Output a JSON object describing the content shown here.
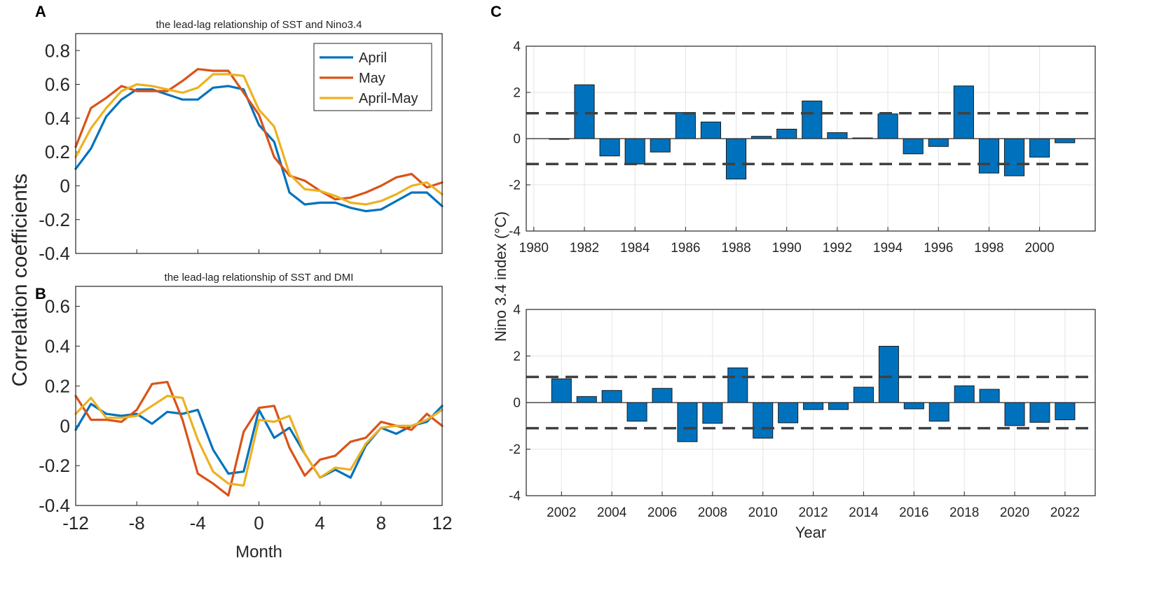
{
  "figure": {
    "panels": {
      "A": "A",
      "B": "B",
      "C": "C"
    },
    "shared_ylabel": "Correlation coefficients",
    "month_label": "Month",
    "year_label": "Year",
    "nino_ylabel": "Nino 3.4 index (°C)"
  },
  "chart_data": [
    {
      "id": "A",
      "type": "line",
      "title": "the lead-lag relationship of SST and Nino3.4",
      "xlabel": "",
      "ylabel": "Correlation coefficients",
      "xlim": [
        -12,
        12
      ],
      "ylim": [
        -0.4,
        0.9
      ],
      "xticks": [
        -12,
        -8,
        -4,
        0,
        4,
        8,
        12
      ],
      "yticks": [
        -0.4,
        -0.2,
        0,
        0.2,
        0.4,
        0.6,
        0.8
      ],
      "ytick_labels": [
        "-0.4",
        "-0.2",
        "0",
        "0.2",
        "0.4",
        "0.6",
        "0.8"
      ],
      "legend_position": "top-right",
      "x": [
        -12,
        -11,
        -10,
        -9,
        -8,
        -7,
        -6,
        -5,
        -4,
        -3,
        -2,
        -1,
        0,
        1,
        2,
        3,
        4,
        5,
        6,
        7,
        8,
        9,
        10,
        11,
        12
      ],
      "series": [
        {
          "name": "April",
          "color": "#0072BD",
          "values": [
            0.1,
            0.22,
            0.41,
            0.51,
            0.57,
            0.57,
            0.54,
            0.51,
            0.51,
            0.58,
            0.59,
            0.57,
            0.36,
            0.26,
            -0.04,
            -0.11,
            -0.1,
            -0.1,
            -0.13,
            -0.15,
            -0.14,
            -0.09,
            -0.04,
            -0.04,
            -0.12
          ]
        },
        {
          "name": "May",
          "color": "#D95319",
          "values": [
            0.23,
            0.46,
            0.52,
            0.59,
            0.56,
            0.56,
            0.56,
            0.62,
            0.69,
            0.68,
            0.68,
            0.55,
            0.42,
            0.17,
            0.06,
            0.03,
            -0.03,
            -0.08,
            -0.07,
            -0.04,
            0.0,
            0.05,
            0.07,
            -0.01,
            0.02
          ]
        },
        {
          "name": "April-May",
          "color": "#EDB120",
          "values": [
            0.17,
            0.34,
            0.46,
            0.56,
            0.6,
            0.59,
            0.57,
            0.55,
            0.58,
            0.66,
            0.66,
            0.65,
            0.45,
            0.35,
            0.07,
            -0.02,
            -0.03,
            -0.06,
            -0.1,
            -0.11,
            -0.09,
            -0.05,
            0.0,
            0.02,
            -0.05
          ]
        }
      ]
    },
    {
      "id": "B",
      "type": "line",
      "title": "the lead-lag relationship of SST and DMI",
      "xlabel": "Month",
      "ylabel": "Correlation coefficients",
      "xlim": [
        -12,
        12
      ],
      "ylim": [
        -0.4,
        0.7
      ],
      "xticks": [
        -12,
        -8,
        -4,
        0,
        4,
        8,
        12
      ],
      "yticks": [
        -0.4,
        -0.2,
        0,
        0.2,
        0.4,
        0.6
      ],
      "ytick_labels": [
        "-0.4",
        "-0.2",
        "0",
        "0.2",
        "0.4",
        "0.6"
      ],
      "x": [
        -12,
        -11,
        -10,
        -9,
        -8,
        -7,
        -6,
        -5,
        -4,
        -3,
        -2,
        -1,
        0,
        1,
        2,
        3,
        4,
        5,
        6,
        7,
        8,
        9,
        10,
        11,
        12
      ],
      "series": [
        {
          "name": "April",
          "color": "#0072BD",
          "values": [
            -0.02,
            0.11,
            0.06,
            0.05,
            0.06,
            0.01,
            0.07,
            0.06,
            0.08,
            -0.12,
            -0.24,
            -0.23,
            0.08,
            -0.06,
            -0.01,
            -0.14,
            -0.26,
            -0.22,
            -0.26,
            -0.1,
            -0.01,
            -0.04,
            0.0,
            0.02,
            0.1
          ]
        },
        {
          "name": "May",
          "color": "#D95319",
          "values": [
            0.15,
            0.03,
            0.03,
            0.02,
            0.08,
            0.21,
            0.22,
            0.03,
            -0.24,
            -0.29,
            -0.35,
            -0.03,
            0.09,
            0.1,
            -0.11,
            -0.25,
            -0.17,
            -0.15,
            -0.08,
            -0.06,
            0.02,
            0.0,
            -0.02,
            0.06,
            0.0
          ]
        },
        {
          "name": "April-May",
          "color": "#EDB120",
          "values": [
            0.06,
            0.14,
            0.04,
            0.04,
            0.05,
            0.1,
            0.15,
            0.14,
            -0.07,
            -0.23,
            -0.29,
            -0.3,
            0.03,
            0.02,
            0.05,
            -0.14,
            -0.26,
            -0.21,
            -0.22,
            -0.09,
            -0.01,
            0.0,
            0.0,
            0.03,
            0.08
          ]
        }
      ]
    },
    {
      "id": "C1",
      "type": "bar",
      "title": "",
      "xlabel": "",
      "ylabel": "Nino 3.4 index (°C)",
      "xlim": [
        1979.7,
        2002.2
      ],
      "ylim": [
        -4,
        4
      ],
      "xticks": [
        1980,
        1982,
        1984,
        1986,
        1988,
        1990,
        1992,
        1994,
        1996,
        1998,
        2000
      ],
      "yticks": [
        -4,
        -2,
        0,
        2,
        4
      ],
      "threshold_lines": [
        1.1,
        -1.1
      ],
      "bar_color": "#0072BD",
      "categories": [
        1981,
        1982,
        1983,
        1984,
        1985,
        1986,
        1987,
        1988,
        1989,
        1990,
        1991,
        1992,
        1993,
        1994,
        1995,
        1996,
        1997,
        1998,
        1999,
        2000,
        2001
      ],
      "values": [
        -0.03,
        2.33,
        -0.75,
        -1.1,
        -0.58,
        1.13,
        0.72,
        -1.75,
        0.1,
        0.41,
        1.63,
        0.26,
        0.03,
        1.07,
        -0.66,
        -0.34,
        2.28,
        -1.49,
        -1.61,
        -0.8,
        -0.18
      ]
    },
    {
      "id": "C2",
      "type": "bar",
      "title": "",
      "xlabel": "Year",
      "ylabel": "Nino 3.4 index (°C)",
      "xlim": [
        2000.6,
        2023.2
      ],
      "ylim": [
        -4,
        4
      ],
      "xticks": [
        2002,
        2004,
        2006,
        2008,
        2010,
        2012,
        2014,
        2016,
        2018,
        2020,
        2022
      ],
      "yticks": [
        -4,
        -2,
        0,
        2,
        4
      ],
      "threshold_lines": [
        1.1,
        -1.1
      ],
      "bar_color": "#0072BD",
      "categories": [
        2002,
        2003,
        2004,
        2005,
        2006,
        2007,
        2008,
        2009,
        2010,
        2011,
        2012,
        2013,
        2014,
        2015,
        2016,
        2017,
        2018,
        2019,
        2020,
        2021,
        2022
      ],
      "values": [
        1.02,
        0.26,
        0.52,
        -0.8,
        0.61,
        -1.68,
        -0.89,
        1.49,
        -1.53,
        -0.87,
        -0.3,
        -0.3,
        0.66,
        2.42,
        -0.27,
        -0.8,
        0.72,
        0.57,
        -0.99,
        -0.85,
        -0.74
      ]
    }
  ]
}
